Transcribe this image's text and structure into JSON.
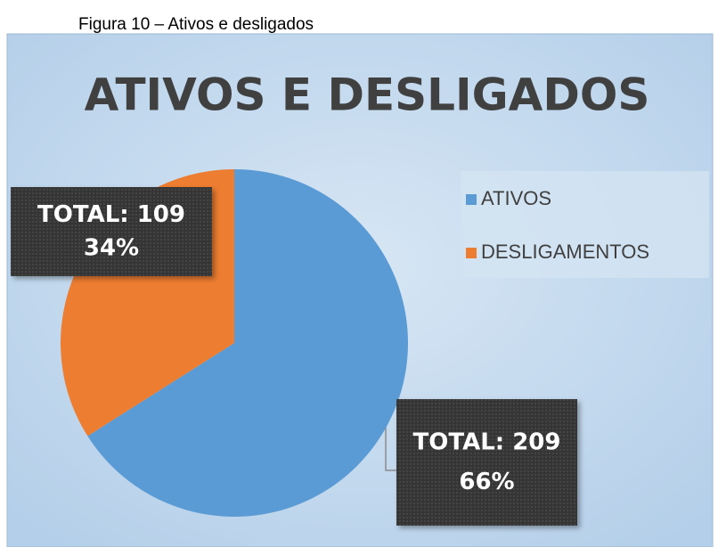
{
  "caption": "Figura 10 – Ativos e desligados",
  "chart_data": {
    "type": "pie",
    "title": "ATIVOS E DESLIGADOS",
    "categories": [
      "ATIVOS",
      "DESLIGAMENTOS"
    ],
    "values": [
      66,
      34
    ],
    "value_labels": [
      "66%",
      "34%"
    ],
    "totals": [
      209,
      109
    ],
    "data_label_prefix": "TOTAL:",
    "colors": [
      "#5b9bd5",
      "#ed7d31"
    ],
    "legend": "right"
  }
}
